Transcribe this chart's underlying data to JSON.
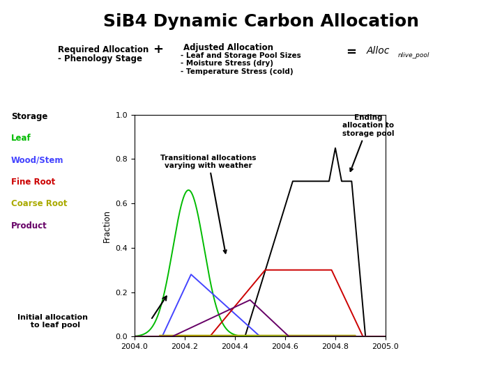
{
  "title": "SiB4 Dynamic Carbon Allocation",
  "title_fontsize": 18,
  "header_left_line1": "Required Allocation",
  "header_left_line2": "- Phenology Stage",
  "header_plus": "+",
  "header_adj_title": "Adjusted Allocation",
  "header_adj_items": [
    "- Leaf and Storage Pool Sizes",
    "- Moisture Stress (dry)",
    "- Temperature Stress (cold)"
  ],
  "header_equals": "=",
  "header_alloc_main": "Alloc",
  "header_alloc_sub": "nlive_pool",
  "ylabel": "Fraction",
  "xlim": [
    2004.0,
    2005.0
  ],
  "ylim": [
    0.0,
    1.0
  ],
  "xticks": [
    2004.0,
    2004.2,
    2004.4,
    2004.6,
    2004.8,
    2005.0
  ],
  "yticks": [
    0.0,
    0.2,
    0.4,
    0.6,
    0.8,
    1.0
  ],
  "bg_color": "#ffffff",
  "legend_items": [
    {
      "label": "Storage",
      "color": "#000000"
    },
    {
      "label": "Leaf",
      "color": "#00bb00"
    },
    {
      "label": "Wood/Stem",
      "color": "#4444ff"
    },
    {
      "label": "Fine Root",
      "color": "#cc0000"
    },
    {
      "label": "Coarse Root",
      "color": "#aaaa00"
    },
    {
      "label": "Product",
      "color": "#660066"
    }
  ]
}
